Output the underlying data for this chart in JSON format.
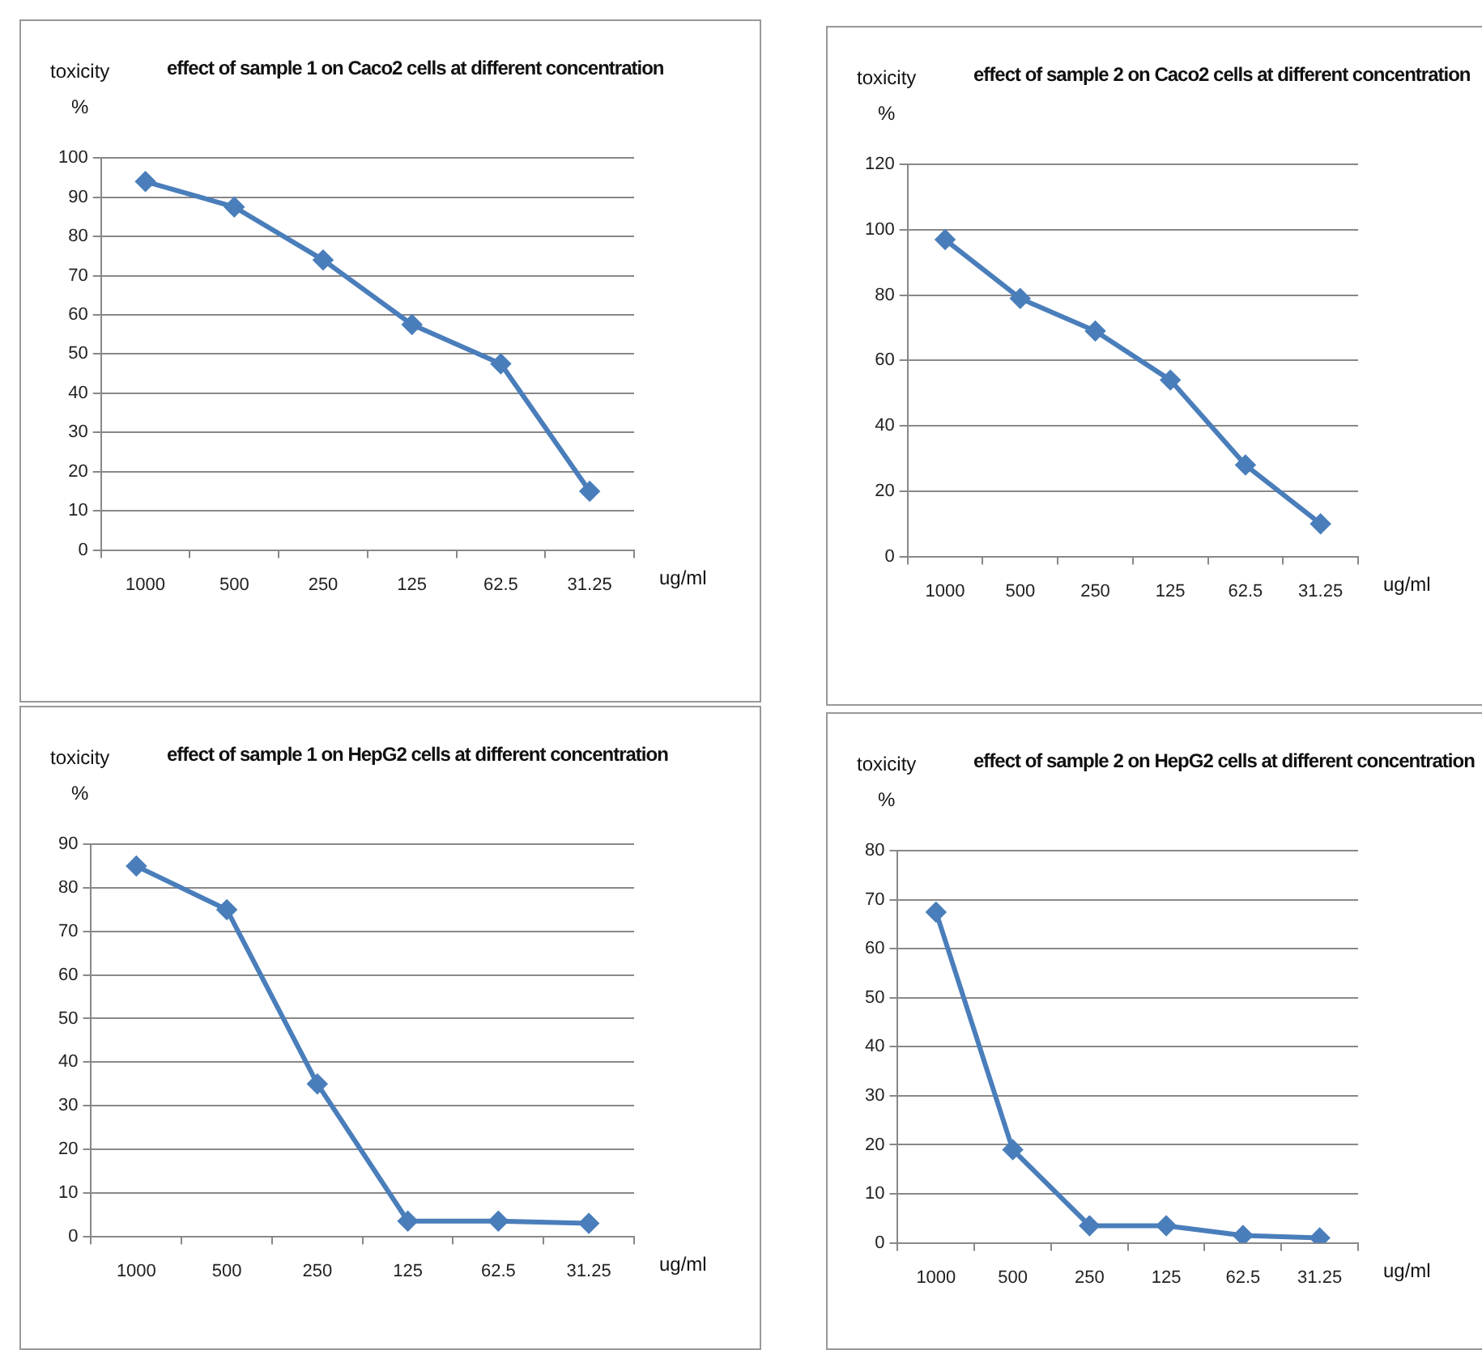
{
  "chart_data": [
    {
      "type": "line",
      "title": "effect of sample 1 on Caco2 cells at different concentration",
      "ylabel": "toxicity\n%",
      "xlabel": "ug/ml",
      "categories": [
        "1000",
        "500",
        "250",
        "125",
        "62.5",
        "31.25"
      ],
      "series": [
        {
          "color": "#4a7ebb",
          "values": [
            94,
            87.5,
            74,
            57.5,
            47.5,
            15
          ]
        }
      ],
      "ylim": [
        0,
        100
      ],
      "yticks": [
        0,
        10,
        20,
        30,
        40,
        50,
        60,
        70,
        80,
        90,
        100
      ],
      "grid": "y",
      "legend": false,
      "marker": "diamond",
      "line_style": "solid"
    },
    {
      "type": "line",
      "title": "effect of sample 2 on Caco2 cells at different concentration",
      "ylabel": "toxicity\n%",
      "xlabel": "ug/ml",
      "categories": [
        "1000",
        "500",
        "250",
        "125",
        "62.5",
        "31.25"
      ],
      "series": [
        {
          "color": "#4a7ebb",
          "values": [
            97,
            79,
            69,
            54,
            28,
            10
          ]
        }
      ],
      "ylim": [
        0,
        120
      ],
      "yticks": [
        0,
        20,
        40,
        60,
        80,
        100,
        120
      ],
      "grid": "y",
      "legend": false,
      "marker": "diamond",
      "line_style": "solid"
    },
    {
      "type": "line",
      "title": "effect of sample 1 on HepG2 cells at different concentration",
      "ylabel": "toxicity\n%",
      "xlabel": "ug/ml",
      "categories": [
        "1000",
        "500",
        "250",
        "125",
        "62.5",
        "31.25"
      ],
      "series": [
        {
          "color": "#4a7ebb",
          "values": [
            85,
            75,
            35,
            3.5,
            3.5,
            3
          ]
        }
      ],
      "ylim": [
        0,
        90
      ],
      "yticks": [
        0,
        10,
        20,
        30,
        40,
        50,
        60,
        70,
        80,
        90
      ],
      "grid": "y",
      "legend": false,
      "marker": "diamond",
      "line_style": "solid"
    },
    {
      "type": "line",
      "title": "effect of sample 2 on HepG2 cells at different concentration",
      "ylabel": "toxicity\n%",
      "xlabel": "ug/ml",
      "categories": [
        "1000",
        "500",
        "250",
        "125",
        "62.5",
        "31.25"
      ],
      "series": [
        {
          "color": "#4a7ebb",
          "values": [
            67.5,
            19,
            3.5,
            3.5,
            1.5,
            1
          ]
        }
      ],
      "ylim": [
        0,
        80
      ],
      "yticks": [
        0,
        10,
        20,
        30,
        40,
        50,
        60,
        70,
        80
      ],
      "grid": "y",
      "legend": false,
      "marker": "diamond",
      "line_style": "solid"
    }
  ]
}
